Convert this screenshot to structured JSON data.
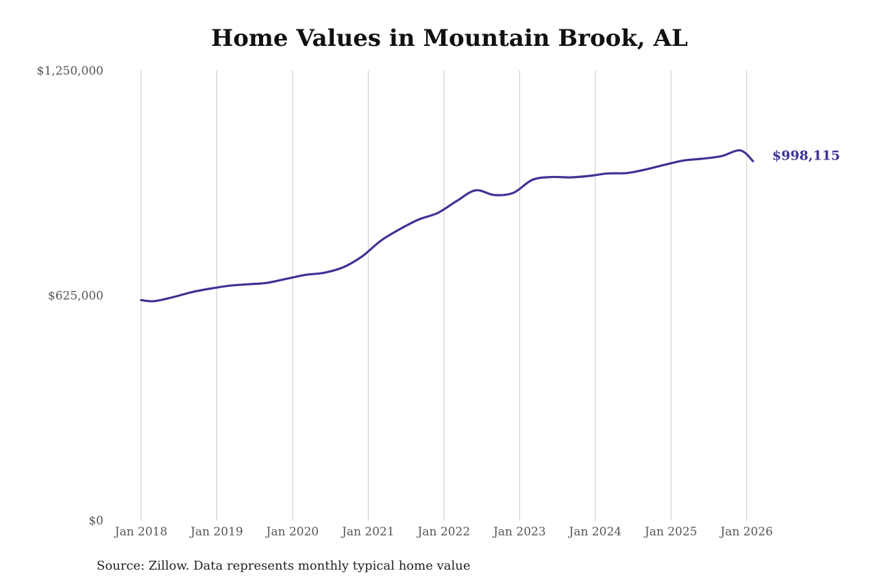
{
  "chart_data": {
    "type": "line",
    "title": "Home Values in Mountain Brook, AL",
    "source": "Source: Zillow. Data represents monthly typical home value",
    "yticks": [
      {
        "value": 0,
        "label": "$0"
      },
      {
        "value": 625000,
        "label": "$625,000"
      },
      {
        "value": 1250000,
        "label": "$1,250,000"
      }
    ],
    "ylim": [
      0,
      1250000
    ],
    "xlim": [
      2018.0,
      2026.0833
    ],
    "xticks": [
      {
        "value": 2018,
        "label": "Jan 2018"
      },
      {
        "value": 2019,
        "label": "Jan 2019"
      },
      {
        "value": 2020,
        "label": "Jan 2020"
      },
      {
        "value": 2021,
        "label": "Jan 2021"
      },
      {
        "value": 2022,
        "label": "Jan 2022"
      },
      {
        "value": 2023,
        "label": "Jan 2023"
      },
      {
        "value": 2024,
        "label": "Jan 2024"
      },
      {
        "value": 2025,
        "label": "Jan 2025"
      },
      {
        "value": 2026,
        "label": "Jan 2026"
      }
    ],
    "grid": "vertical",
    "line_color": "#3d3394",
    "end_label": "$998,115",
    "series": [
      {
        "x": [
          "2018-01",
          "2018-03",
          "2018-06",
          "2018-09",
          "2018-12",
          "2019-03",
          "2019-06",
          "2019-09",
          "2019-12",
          "2020-03",
          "2020-06",
          "2020-09",
          "2020-12",
          "2021-03",
          "2021-06",
          "2021-09",
          "2021-12",
          "2022-03",
          "2022-06",
          "2022-09",
          "2022-12",
          "2023-03",
          "2023-06",
          "2023-09",
          "2023-12",
          "2024-03",
          "2024-06",
          "2024-09",
          "2024-12",
          "2025-03",
          "2025-06",
          "2025-09",
          "2025-12",
          "2026-02"
        ],
        "values": [
          612000,
          609000,
          620000,
          634000,
          644000,
          652000,
          656000,
          660000,
          671000,
          682000,
          688000,
          703000,
          733000,
          777000,
          809000,
          836000,
          854000,
          887000,
          917000,
          904000,
          910000,
          946000,
          954000,
          953000,
          957000,
          964000,
          965000,
          975000,
          988000,
          1000000,
          1005000,
          1012000,
          1028000,
          998115
        ]
      }
    ]
  }
}
